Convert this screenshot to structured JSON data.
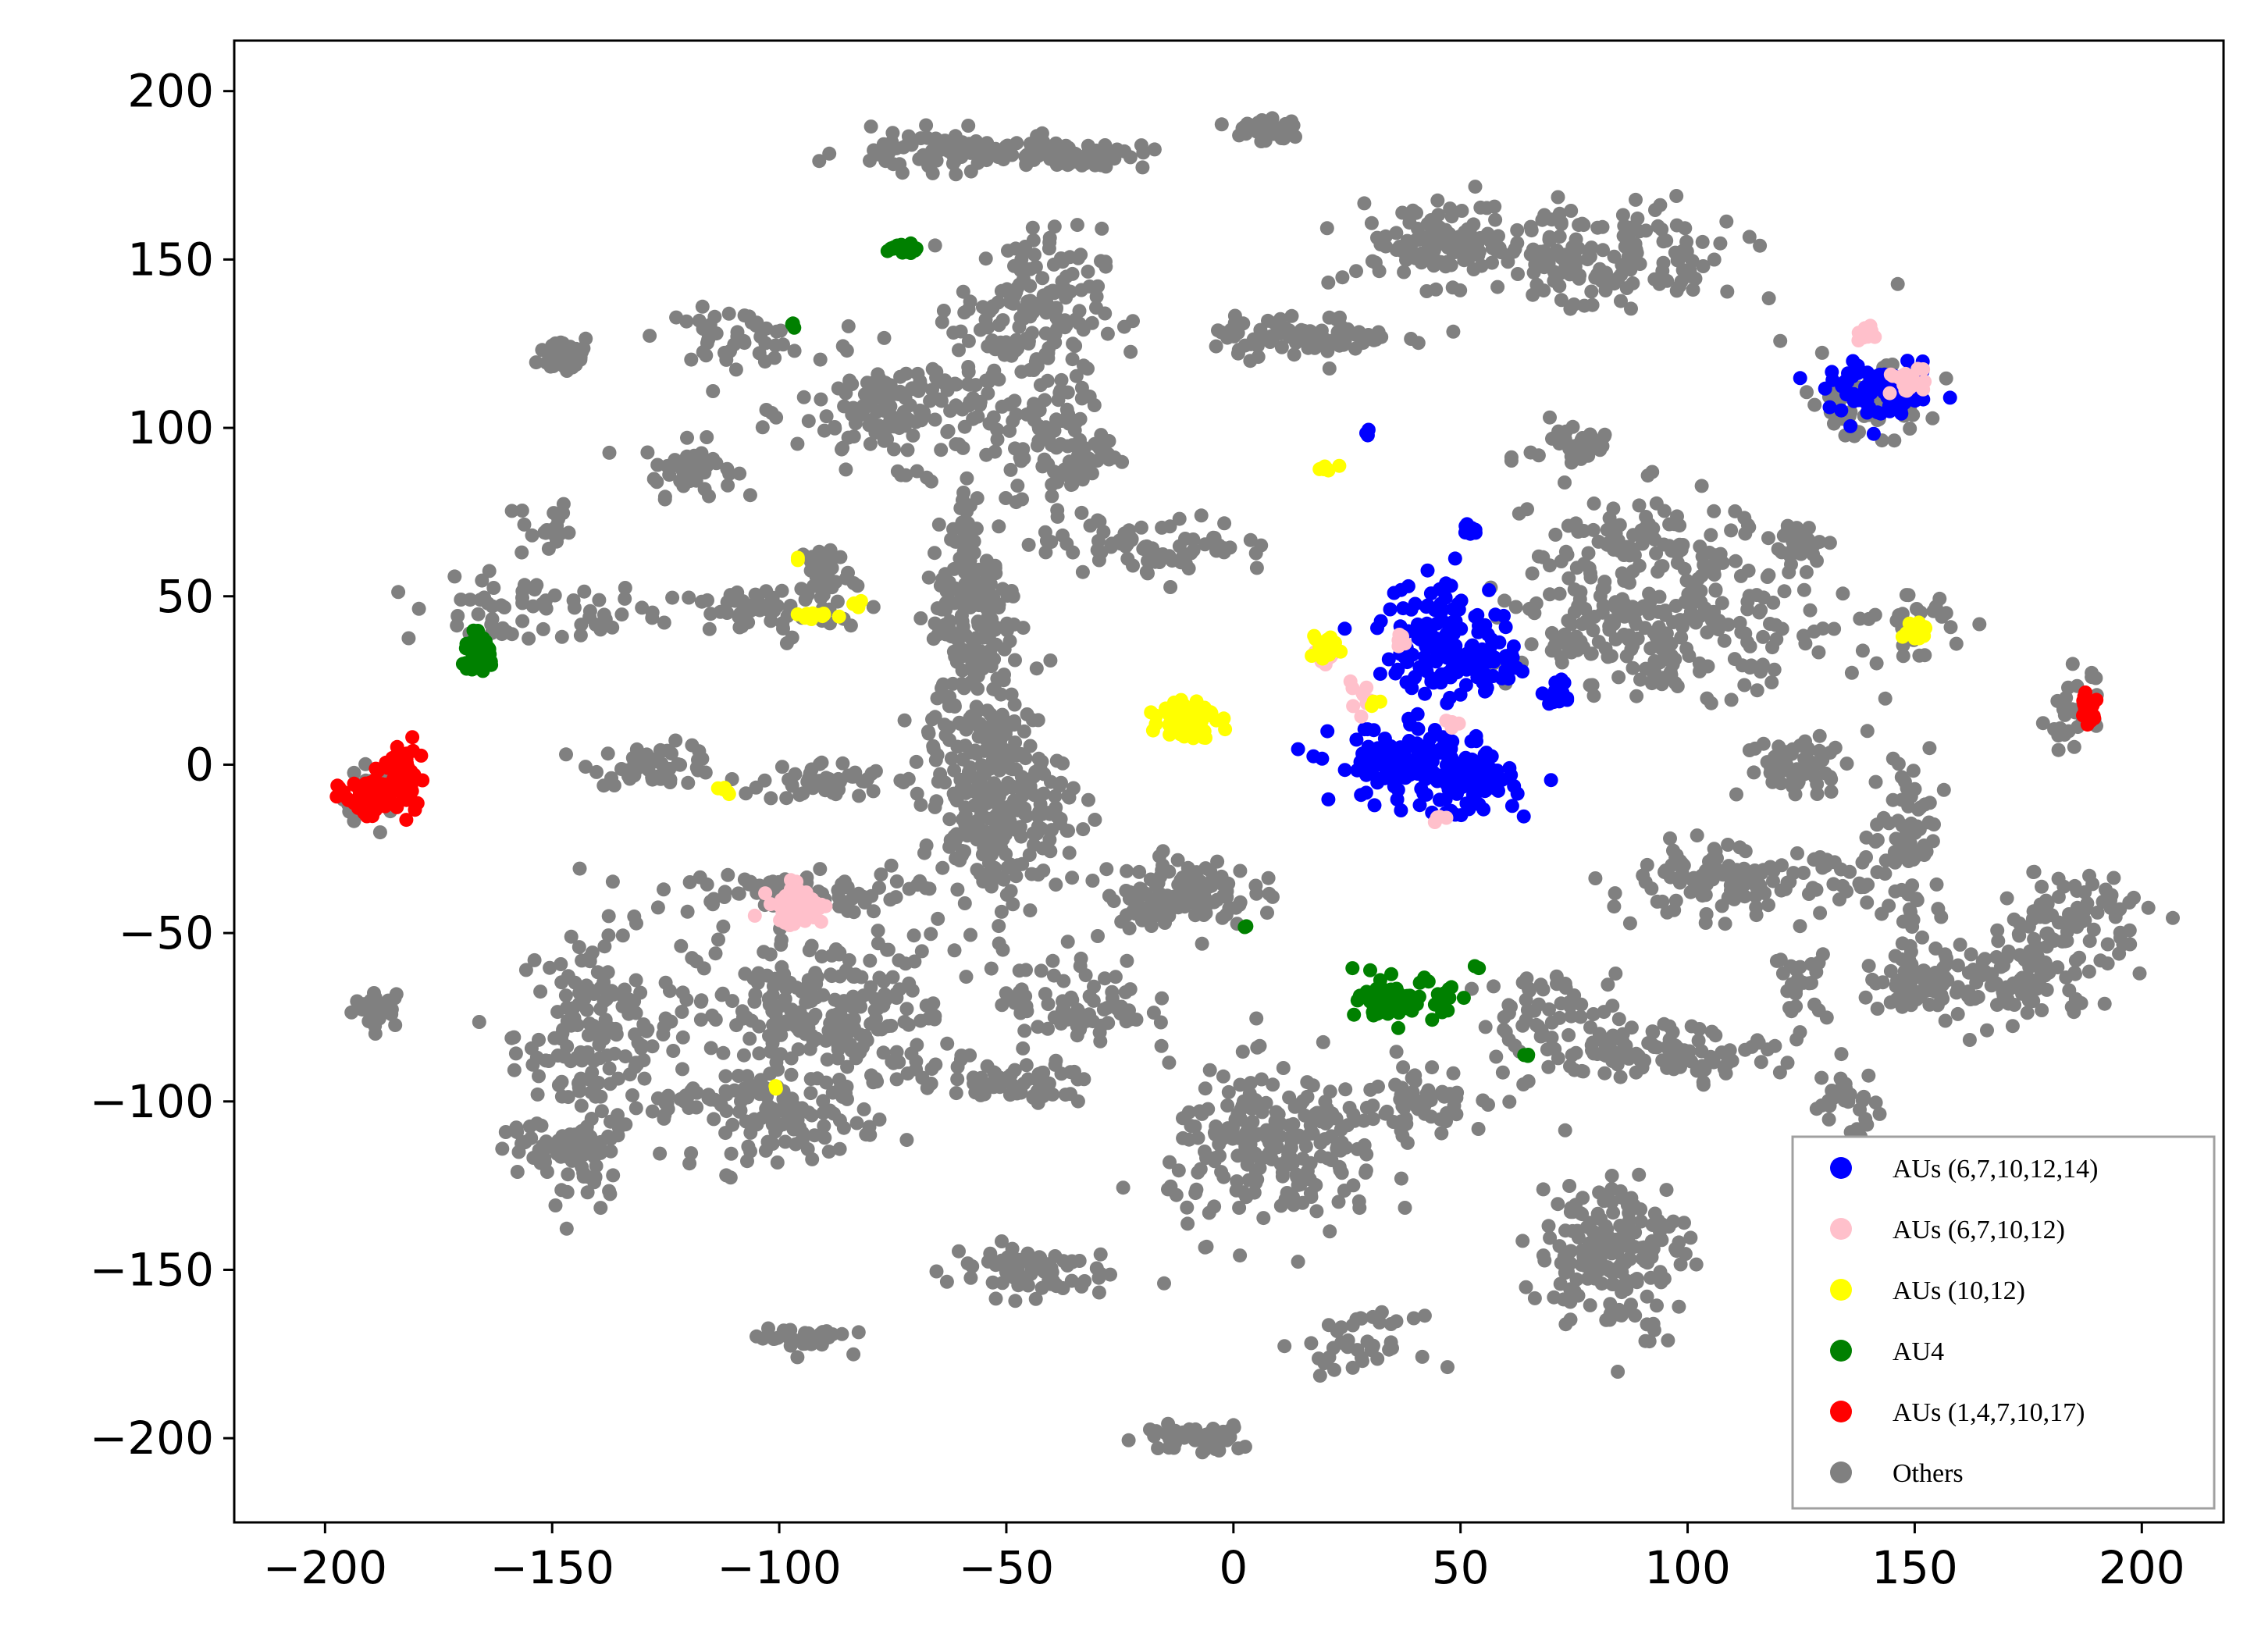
{
  "chart_data": {
    "type": "scatter",
    "title": "",
    "xlabel": "",
    "ylabel": "",
    "xlim": [
      -220,
      218
    ],
    "ylim": [
      -225,
      215
    ],
    "x_ticks": [
      -200,
      -150,
      -100,
      -50,
      0,
      50,
      100,
      150,
      200
    ],
    "y_ticks": [
      -200,
      -150,
      -100,
      -50,
      0,
      50,
      100,
      150,
      200
    ],
    "x_tick_labels": [
      "−200",
      "−150",
      "−100",
      "−50",
      "0",
      "50",
      "100",
      "150",
      "200"
    ],
    "y_tick_labels": [
      "−200",
      "−150",
      "−100",
      "−50",
      "0",
      "50",
      "100",
      "150",
      "200"
    ],
    "grid": false,
    "legend_position": "bottom-right",
    "series": [
      {
        "name": "Others",
        "color": "#808080",
        "clusters": [
          {
            "cx": -188,
            "cy": -72,
            "sx": 3,
            "sy": 3,
            "n": 25
          },
          {
            "cx": -190,
            "cy": -10,
            "sx": 3,
            "sy": 5,
            "n": 25
          },
          {
            "cx": -155,
            "cy": 45,
            "sx": 14,
            "sy": 5,
            "n": 60
          },
          {
            "cx": -152,
            "cy": 70,
            "sx": 3,
            "sy": 5,
            "n": 20
          },
          {
            "cx": -147,
            "cy": 122,
            "sx": 3,
            "sy": 3,
            "n": 40
          },
          {
            "cx": -120,
            "cy": 88,
            "sx": 5,
            "sy": 4,
            "n": 45
          },
          {
            "cx": -140,
            "cy": -80,
            "sx": 9,
            "sy": 15,
            "n": 160
          },
          {
            "cx": -152,
            "cy": -115,
            "sx": 6,
            "sy": 4,
            "n": 40
          },
          {
            "cx": -140,
            "cy": -120,
            "sx": 3,
            "sy": 7,
            "n": 30
          },
          {
            "cx": -120,
            "cy": -100,
            "sx": 5,
            "sy": 3,
            "n": 20
          },
          {
            "cx": -127,
            "cy": 0,
            "sx": 7,
            "sy": 3,
            "n": 50
          },
          {
            "cx": -110,
            "cy": 127,
            "sx": 8,
            "sy": 4,
            "n": 45
          },
          {
            "cx": -105,
            "cy": 45,
            "sx": 11,
            "sy": 4,
            "n": 60
          },
          {
            "cx": -90,
            "cy": 57,
            "sx": 3,
            "sy": 5,
            "n": 40
          },
          {
            "cx": -90,
            "cy": -5,
            "sx": 7,
            "sy": 3,
            "n": 50
          },
          {
            "cx": -100,
            "cy": -38,
            "sx": 14,
            "sy": 3,
            "n": 80
          },
          {
            "cx": -90,
            "cy": -75,
            "sx": 14,
            "sy": 12,
            "n": 250
          },
          {
            "cx": -98,
            "cy": -105,
            "sx": 10,
            "sy": 6,
            "n": 100
          },
          {
            "cx": -72,
            "cy": 105,
            "sx": 12,
            "sy": 8,
            "n": 160
          },
          {
            "cx": -62,
            "cy": 182,
            "sx": 12,
            "sy": 3,
            "n": 90
          },
          {
            "cx": -35,
            "cy": 181,
            "sx": 8,
            "sy": 2,
            "n": 50
          },
          {
            "cx": -45,
            "cy": 135,
            "sx": 8,
            "sy": 12,
            "n": 150
          },
          {
            "cx": -38,
            "cy": 95,
            "sx": 6,
            "sy": 12,
            "n": 100
          },
          {
            "cx": -57,
            "cy": 45,
            "sx": 5,
            "sy": 20,
            "n": 180
          },
          {
            "cx": -53,
            "cy": -10,
            "sx": 8,
            "sy": 15,
            "n": 280
          },
          {
            "cx": -95,
            "cy": -170,
            "sx": 5,
            "sy": 2,
            "n": 40
          },
          {
            "cx": -45,
            "cy": -150,
            "sx": 9,
            "sy": 4,
            "n": 70
          },
          {
            "cx": -50,
            "cy": -95,
            "sx": 10,
            "sy": 3,
            "n": 60
          },
          {
            "cx": -35,
            "cy": -70,
            "sx": 8,
            "sy": 8,
            "n": 80
          },
          {
            "cx": -15,
            "cy": 65,
            "sx": 12,
            "sy": 4,
            "n": 70
          },
          {
            "cx": -12,
            "cy": -38,
            "sx": 8,
            "sy": 5,
            "n": 120
          },
          {
            "cx": 7,
            "cy": 189,
            "sx": 4,
            "sy": 2,
            "n": 40
          },
          {
            "cx": 15,
            "cy": 127,
            "sx": 10,
            "sy": 3,
            "n": 80
          },
          {
            "cx": 10,
            "cy": -115,
            "sx": 12,
            "sy": 12,
            "n": 220
          },
          {
            "cx": -8,
            "cy": -200,
            "sx": 6,
            "sy": 2,
            "n": 50
          },
          {
            "cx": 40,
            "cy": -98,
            "sx": 8,
            "sy": 5,
            "n": 60
          },
          {
            "cx": 28,
            "cy": -172,
            "sx": 6,
            "sy": 4,
            "n": 40
          },
          {
            "cx": 45,
            "cy": 155,
            "sx": 10,
            "sy": 6,
            "n": 100
          },
          {
            "cx": 82,
            "cy": 150,
            "sx": 15,
            "sy": 8,
            "n": 160
          },
          {
            "cx": 75,
            "cy": 95,
            "sx": 5,
            "sy": 4,
            "n": 40
          },
          {
            "cx": 90,
            "cy": 65,
            "sx": 12,
            "sy": 8,
            "n": 100
          },
          {
            "cx": 95,
            "cy": 40,
            "sx": 18,
            "sy": 9,
            "n": 220
          },
          {
            "cx": 70,
            "cy": -75,
            "sx": 8,
            "sy": 7,
            "n": 60
          },
          {
            "cx": 95,
            "cy": -85,
            "sx": 12,
            "sy": 4,
            "n": 100
          },
          {
            "cx": 83,
            "cy": -145,
            "sx": 8,
            "sy": 12,
            "n": 180
          },
          {
            "cx": 140,
            "cy": 108,
            "sx": 7,
            "sy": 5,
            "n": 80
          },
          {
            "cx": 110,
            "cy": -35,
            "sx": 14,
            "sy": 5,
            "n": 130
          },
          {
            "cx": 125,
            "cy": -65,
            "sx": 3,
            "sy": 5,
            "n": 25
          },
          {
            "cx": 125,
            "cy": 65,
            "sx": 3,
            "sy": 3,
            "n": 30
          },
          {
            "cx": 125,
            "cy": 0,
            "sx": 6,
            "sy": 5,
            "n": 60
          },
          {
            "cx": 148,
            "cy": -20,
            "sx": 4,
            "sy": 14,
            "n": 80
          },
          {
            "cx": 150,
            "cy": -65,
            "sx": 5,
            "sy": 5,
            "n": 50
          },
          {
            "cx": 170,
            "cy": -65,
            "sx": 10,
            "sy": 6,
            "n": 110
          },
          {
            "cx": 185,
            "cy": -45,
            "sx": 8,
            "sy": 7,
            "n": 80
          },
          {
            "cx": 185,
            "cy": 15,
            "sx": 3,
            "sy": 6,
            "n": 30
          },
          {
            "cx": 150,
            "cy": 40,
            "sx": 4,
            "sy": 5,
            "n": 30
          },
          {
            "cx": 135,
            "cy": -100,
            "sx": 4,
            "sy": 5,
            "n": 30
          }
        ]
      },
      {
        "name": "AUs (6,7,10,12,14)",
        "color": "#0000ff",
        "clusters": [
          {
            "cx": 38,
            "cy": 0,
            "sx": 8,
            "sy": 6,
            "n": 120
          },
          {
            "cx": 52,
            "cy": -5,
            "sx": 5,
            "sy": 5,
            "n": 80
          },
          {
            "cx": 46,
            "cy": 38,
            "sx": 7,
            "sy": 9,
            "n": 120
          },
          {
            "cx": 55,
            "cy": 30,
            "sx": 4,
            "sy": 4,
            "n": 40
          },
          {
            "cx": 52,
            "cy": 70,
            "sx": 1,
            "sy": 1,
            "n": 8
          },
          {
            "cx": 72,
            "cy": 21,
            "sx": 2,
            "sy": 2,
            "n": 15
          },
          {
            "cx": 143,
            "cy": 110,
            "sx": 6,
            "sy": 4,
            "n": 80
          },
          {
            "cx": 30,
            "cy": 99,
            "sx": 0.5,
            "sy": 0.5,
            "n": 3
          }
        ]
      },
      {
        "name": "AUs (6,7,10,12)",
        "color": "#ffc0cb",
        "clusters": [
          {
            "cx": -96,
            "cy": -42,
            "sx": 3,
            "sy": 3,
            "n": 60
          },
          {
            "cx": 148,
            "cy": 114,
            "sx": 2,
            "sy": 2,
            "n": 25
          },
          {
            "cx": 139,
            "cy": 128,
            "sx": 1,
            "sy": 1,
            "n": 10
          },
          {
            "cx": 20,
            "cy": 33,
            "sx": 2,
            "sy": 2,
            "n": 15
          },
          {
            "cx": 28,
            "cy": 20,
            "sx": 2,
            "sy": 2,
            "n": 10
          },
          {
            "cx": 37,
            "cy": 37,
            "sx": 1,
            "sy": 1,
            "n": 5
          },
          {
            "cx": 48,
            "cy": 12,
            "sx": 1,
            "sy": 1,
            "n": 4
          },
          {
            "cx": 45,
            "cy": -16,
            "sx": 1,
            "sy": 1,
            "n": 4
          }
        ]
      },
      {
        "name": "AUs (10,12)",
        "color": "#ffff00",
        "clusters": [
          {
            "cx": -10,
            "cy": 14,
            "sx": 3,
            "sy": 3,
            "n": 80
          },
          {
            "cx": 150,
            "cy": 40,
            "sx": 1.5,
            "sy": 1.5,
            "n": 20
          },
          {
            "cx": 20,
            "cy": 88,
            "sx": 1,
            "sy": 0.6,
            "n": 8
          },
          {
            "cx": 20,
            "cy": 35,
            "sx": 2,
            "sy": 2,
            "n": 15
          },
          {
            "cx": -92,
            "cy": 44,
            "sx": 2,
            "sy": 1,
            "n": 10
          },
          {
            "cx": -84,
            "cy": 48,
            "sx": 1,
            "sy": 1,
            "n": 5
          },
          {
            "cx": -96,
            "cy": 61,
            "sx": 0.5,
            "sy": 0.5,
            "n": 2
          },
          {
            "cx": -112,
            "cy": -8,
            "sx": 1,
            "sy": 1,
            "n": 5
          },
          {
            "cx": -101,
            "cy": -96,
            "sx": 0.5,
            "sy": 0.5,
            "n": 2
          },
          {
            "cx": 31,
            "cy": 18,
            "sx": 0.8,
            "sy": 0.8,
            "n": 3
          }
        ]
      },
      {
        "name": "AU4",
        "color": "#008000",
        "clusters": [
          {
            "cx": -166,
            "cy": 33,
            "sx": 2,
            "sy": 3,
            "n": 50
          },
          {
            "cx": -73,
            "cy": 153,
            "sx": 1.5,
            "sy": 1,
            "n": 20
          },
          {
            "cx": -97,
            "cy": 131,
            "sx": 0.5,
            "sy": 0.5,
            "n": 3
          },
          {
            "cx": 38,
            "cy": -70,
            "sx": 5,
            "sy": 3,
            "n": 80
          },
          {
            "cx": 3,
            "cy": -48,
            "sx": 0.5,
            "sy": 0.5,
            "n": 2
          },
          {
            "cx": 53,
            "cy": -61,
            "sx": 0.5,
            "sy": 0.5,
            "n": 2
          },
          {
            "cx": 65,
            "cy": -86,
            "sx": 0.5,
            "sy": 0.5,
            "n": 3
          }
        ]
      },
      {
        "name": "AUs (1,4,7,10,17)",
        "color": "#ff0000",
        "clusters": [
          {
            "cx": -188,
            "cy": -8,
            "sx": 4,
            "sy": 3,
            "n": 90
          },
          {
            "cx": -183,
            "cy": 0,
            "sx": 1.5,
            "sy": 3,
            "n": 30
          },
          {
            "cx": 188,
            "cy": 17,
            "sx": 1,
            "sy": 2.5,
            "n": 20
          }
        ]
      }
    ]
  }
}
